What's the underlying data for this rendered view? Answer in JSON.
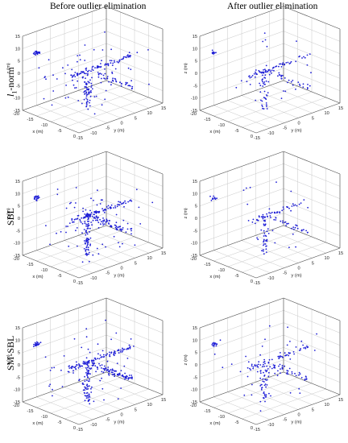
{
  "column_titles": [
    "Before outlier elimination",
    "After outlier elimination"
  ],
  "row_labels": [
    "-norm",
    "SBL",
    "SM-SBL"
  ],
  "row_label_prefix": "l",
  "row_label_sub": "1",
  "colors": {
    "points": "#1f1fd6",
    "axes": "#555555",
    "grid": "#c8c8c8"
  },
  "chart_data": {
    "type": "scatter",
    "layout": "3 rows x 2 columns of 3D scatter plots",
    "axes": {
      "x": {
        "label": "x (m)",
        "range": [
          -20,
          0
        ],
        "ticks": [
          -20,
          -15,
          -10,
          -5,
          0
        ]
      },
      "y": {
        "label": "y (m)",
        "range": [
          -15,
          15
        ],
        "ticks": [
          -15,
          -10,
          -5,
          0,
          5,
          10,
          15
        ]
      },
      "z": {
        "label": "z (m)",
        "range": [
          -15,
          15
        ],
        "ticks": [
          -15,
          -10,
          -5,
          0,
          5,
          10,
          15
        ]
      }
    },
    "grid": true,
    "panels": [
      {
        "row": "l1-norm",
        "column": "Before outlier elimination",
        "approx_point_count": 260
      },
      {
        "row": "l1-norm",
        "column": "After outlier elimination",
        "approx_point_count": 150
      },
      {
        "row": "SBL",
        "column": "Before outlier elimination",
        "approx_point_count": 300
      },
      {
        "row": "SBL",
        "column": "After outlier elimination",
        "approx_point_count": 140
      },
      {
        "row": "SM-SBL",
        "column": "Before outlier elimination",
        "approx_point_count": 320
      },
      {
        "row": "SM-SBL",
        "column": "After outlier elimination",
        "approx_point_count": 190
      }
    ]
  }
}
